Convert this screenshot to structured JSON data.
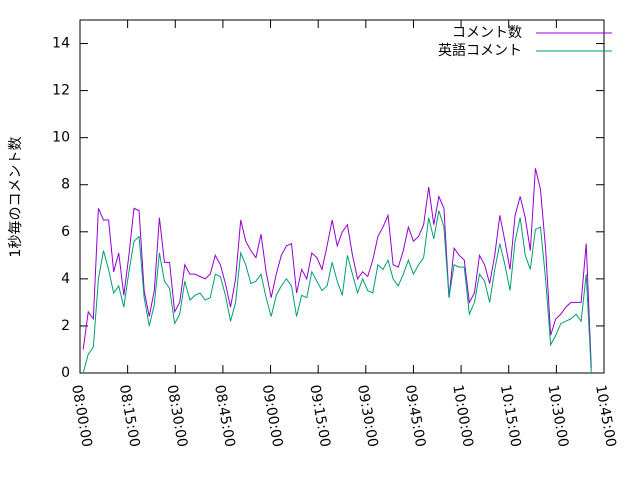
{
  "chart_data": {
    "type": "line",
    "ylabel": "1秒毎のコメント数",
    "x": [
      "08:01:00",
      "08:02:36",
      "08:04:12",
      "08:05:48",
      "08:07:24",
      "08:09:00",
      "08:10:36",
      "08:12:12",
      "08:13:48",
      "08:15:24",
      "08:17:00",
      "08:18:36",
      "08:20:12",
      "08:21:48",
      "08:23:24",
      "08:25:00",
      "08:26:36",
      "08:28:12",
      "08:29:48",
      "08:31:24",
      "08:33:00",
      "08:34:36",
      "08:36:12",
      "08:37:48",
      "08:39:24",
      "08:41:00",
      "08:42:36",
      "08:44:12",
      "08:45:48",
      "08:47:24",
      "08:49:00",
      "08:50:36",
      "08:52:12",
      "08:53:48",
      "08:55:24",
      "08:57:00",
      "08:58:36",
      "09:00:12",
      "09:01:48",
      "09:03:24",
      "09:05:00",
      "09:06:36",
      "09:08:12",
      "09:09:48",
      "09:11:24",
      "09:13:00",
      "09:14:36",
      "09:16:12",
      "09:17:48",
      "09:19:24",
      "09:21:00",
      "09:22:36",
      "09:24:12",
      "09:25:48",
      "09:27:24",
      "09:29:00",
      "09:30:36",
      "09:32:12",
      "09:33:48",
      "09:35:24",
      "09:37:00",
      "09:38:36",
      "09:40:12",
      "09:41:48",
      "09:43:24",
      "09:45:00",
      "09:46:36",
      "09:48:12",
      "09:49:48",
      "09:51:24",
      "09:53:00",
      "09:54:36",
      "09:56:12",
      "09:57:48",
      "09:59:24",
      "10:01:00",
      "10:02:36",
      "10:04:12",
      "10:05:48",
      "10:07:24",
      "10:09:00",
      "10:10:36",
      "10:12:12",
      "10:13:48",
      "10:15:24",
      "10:17:00",
      "10:18:36",
      "10:20:12",
      "10:21:48",
      "10:23:24",
      "10:25:00",
      "10:26:36",
      "10:28:12",
      "10:29:48",
      "10:31:24",
      "10:33:00",
      "10:34:36",
      "10:36:12",
      "10:37:48",
      "10:39:24",
      "10:41:00"
    ],
    "series": [
      {
        "name": "コメント数",
        "color": "#9400d3",
        "values": [
          1.0,
          2.6,
          2.3,
          7.0,
          6.5,
          6.5,
          4.3,
          5.1,
          3.3,
          5.0,
          7.0,
          6.9,
          3.5,
          2.4,
          3.5,
          6.6,
          4.7,
          4.7,
          2.6,
          3.0,
          4.6,
          4.2,
          4.2,
          4.1,
          4.0,
          4.2,
          5.0,
          4.6,
          3.8,
          2.8,
          4.0,
          6.5,
          5.6,
          5.2,
          4.9,
          5.9,
          4.3,
          3.2,
          4.2,
          5.0,
          5.4,
          5.5,
          3.4,
          4.4,
          4.0,
          5.1,
          4.9,
          4.4,
          5.4,
          6.5,
          5.4,
          6.0,
          6.3,
          5.0,
          4.0,
          4.3,
          4.1,
          4.8,
          5.8,
          6.2,
          6.7,
          4.6,
          4.5,
          5.2,
          6.2,
          5.6,
          5.8,
          6.3,
          7.9,
          6.3,
          7.5,
          7.0,
          3.2,
          5.3,
          5.0,
          4.8,
          3.0,
          3.4,
          5.0,
          4.6,
          3.8,
          5.0,
          6.7,
          5.6,
          4.4,
          6.7,
          7.5,
          6.6,
          5.2,
          8.7,
          7.8,
          5.3,
          1.6,
          2.3,
          2.5,
          2.8,
          3.0,
          3.0,
          3.0,
          5.5,
          0.2
        ]
      },
      {
        "name": "英語コメント",
        "color": "#009e73",
        "values": [
          0.0,
          0.8,
          1.1,
          4.0,
          5.2,
          4.4,
          3.4,
          3.7,
          2.8,
          4.3,
          5.6,
          5.8,
          3.2,
          2.0,
          2.9,
          5.1,
          3.9,
          3.6,
          2.1,
          2.5,
          3.9,
          3.1,
          3.3,
          3.4,
          3.1,
          3.2,
          4.2,
          4.1,
          3.3,
          2.2,
          3.0,
          5.1,
          4.6,
          3.8,
          3.9,
          4.2,
          3.2,
          2.4,
          3.3,
          3.7,
          4.0,
          3.7,
          2.4,
          3.3,
          3.2,
          4.3,
          3.9,
          3.5,
          3.7,
          4.7,
          3.9,
          3.3,
          5.0,
          4.2,
          3.4,
          4.0,
          3.5,
          3.4,
          4.6,
          4.4,
          4.8,
          4.0,
          3.7,
          4.2,
          4.8,
          4.2,
          4.6,
          4.9,
          6.6,
          5.7,
          6.9,
          6.2,
          3.2,
          4.6,
          4.5,
          4.5,
          2.5,
          3.0,
          4.2,
          3.9,
          3.0,
          4.4,
          5.5,
          4.6,
          3.5,
          5.6,
          6.6,
          5.0,
          4.4,
          6.1,
          6.2,
          4.0,
          1.2,
          1.6,
          2.1,
          2.2,
          2.3,
          2.5,
          2.2,
          4.2,
          0.0
        ]
      }
    ],
    "xlim": [
      "08:00:00",
      "10:45:00"
    ],
    "xticks": [
      "08:00:00",
      "08:15:00",
      "08:30:00",
      "08:45:00",
      "09:00:00",
      "09:15:00",
      "09:30:00",
      "09:45:00",
      "10:00:00",
      "10:15:00",
      "10:30:00",
      "10:45:00"
    ],
    "ylim": [
      0,
      15
    ],
    "yticks": [
      0,
      2,
      4,
      6,
      8,
      10,
      12,
      14
    ],
    "legend": "upper right",
    "grid": false
  }
}
